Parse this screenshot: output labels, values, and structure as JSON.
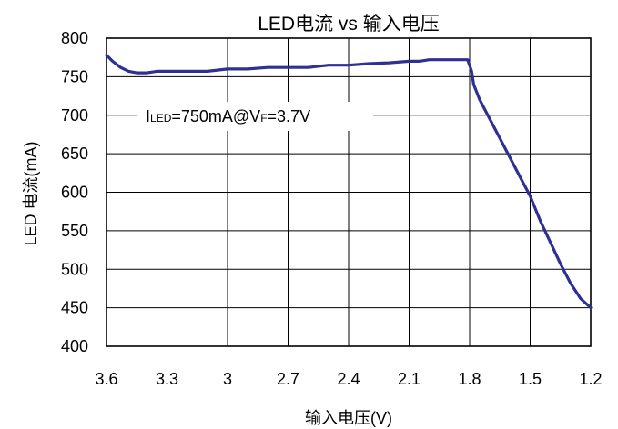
{
  "chart_data": {
    "type": "line",
    "title": "LED电流 vs 输入电压",
    "xlabel": "输入电压(V)",
    "ylabel": "LED 电流(mA)",
    "x_reversed": true,
    "xlim": [
      3.6,
      1.2
    ],
    "ylim": [
      400,
      800
    ],
    "x_ticks": [
      "3.6",
      "3.3",
      "3",
      "2.7",
      "2.4",
      "2.1",
      "1.8",
      "1.5",
      "1.2"
    ],
    "y_ticks": [
      "800",
      "750",
      "700",
      "650",
      "600",
      "550",
      "500",
      "450",
      "400"
    ],
    "grid": true,
    "line_color": "#2e3192",
    "annotation": {
      "prefix": "I",
      "sub1": "LED",
      "mid": "=750mA@V",
      "sub2": "F",
      "suffix": "=3.7V"
    },
    "series": [
      {
        "x": [
          3.6,
          3.57,
          3.53,
          3.49,
          3.45,
          3.4,
          3.35,
          3.3,
          3.2,
          3.1,
          3.0,
          2.9,
          2.8,
          2.7,
          2.6,
          2.5,
          2.4,
          2.3,
          2.2,
          2.1,
          2.05,
          2.0,
          1.95,
          1.9,
          1.85,
          1.81,
          1.79,
          1.78,
          1.75,
          1.7,
          1.65,
          1.6,
          1.55,
          1.5,
          1.45,
          1.4,
          1.35,
          1.3,
          1.25,
          1.2
        ],
        "values": [
          778,
          770,
          762,
          757,
          755,
          755,
          757,
          757,
          757,
          757,
          760,
          760,
          762,
          762,
          762,
          765,
          765,
          767,
          768,
          770,
          770,
          772,
          772,
          772,
          772,
          772,
          757,
          740,
          720,
          695,
          670,
          645,
          620,
          595,
          563,
          535,
          507,
          482,
          462,
          450
        ]
      }
    ]
  }
}
